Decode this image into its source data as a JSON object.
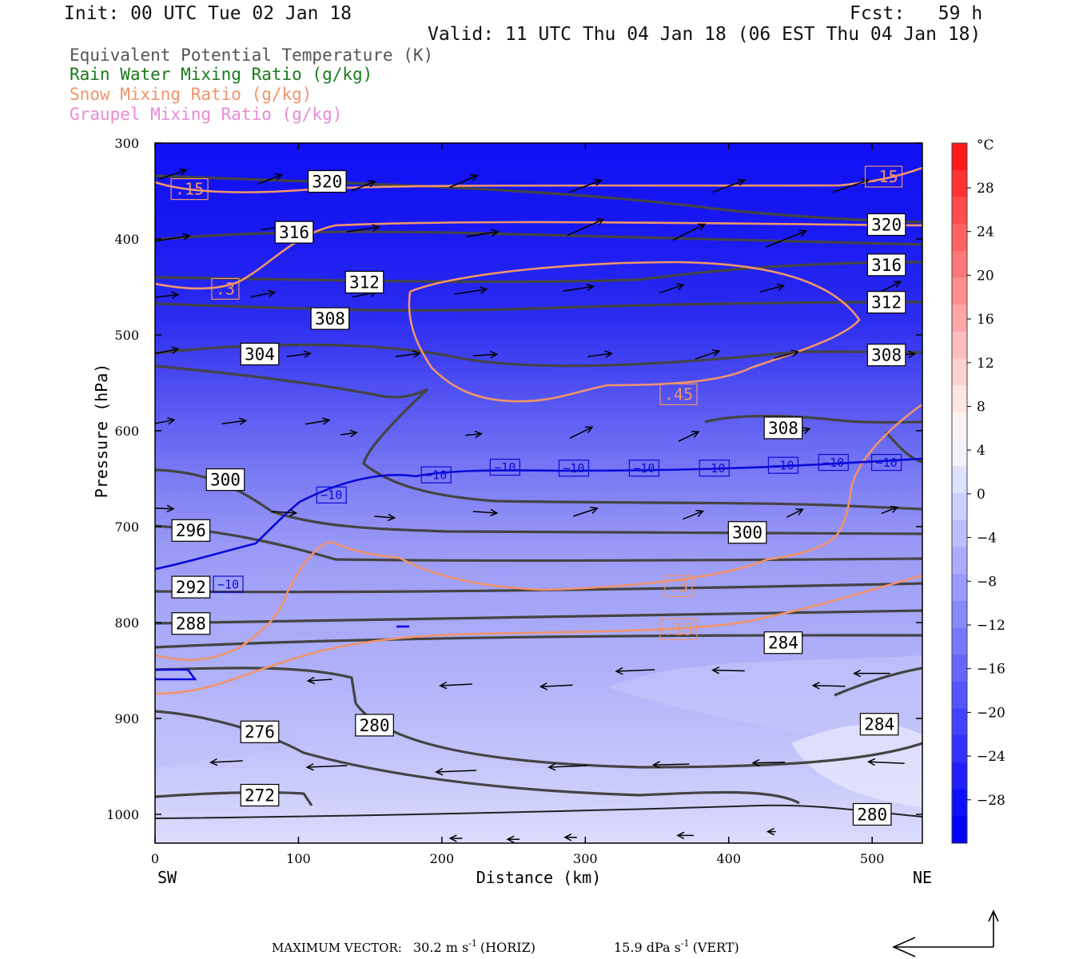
{
  "header": {
    "init": "Init: 00 UTC Tue 02 Jan 18",
    "fcst": "Fcst:   59 h",
    "valid": "Valid: 11 UTC Thu 04 Jan 18 (06 EST Thu 04 Jan 18)"
  },
  "legend": [
    {
      "label": "Equivalent Potential Temperature (K)",
      "color": "#555555"
    },
    {
      "label": "Rain Water Mixing Ratio (g/kg)",
      "color": "#1a7a1a"
    },
    {
      "label": "Snow Mixing Ratio (g/kg)",
      "color": "#f0946a"
    },
    {
      "label": "Graupel Mixing Ratio (g/kg)",
      "color": "#e98ad8"
    }
  ],
  "footer": {
    "max_vector_label": "MAXIMUM VECTOR:",
    "horiz_value": "30.2 m s",
    "horiz_suffix": "(HORIZ)",
    "vert_value": "15.9 dPa s",
    "vert_suffix": "(VERT)",
    "exponent": "-1"
  },
  "chart_data": {
    "type": "heatmap",
    "description_fields": "cross-section SW to NE",
    "xlabel": "Distance (km)",
    "ylabel": "Pressure (hPa)",
    "xlim": [
      0,
      535
    ],
    "ylim": [
      1030,
      300
    ],
    "x_ticks": [
      0,
      100,
      200,
      300,
      400,
      500
    ],
    "y_ticks": [
      300,
      400,
      500,
      600,
      700,
      800,
      900,
      1000
    ],
    "x_end_labels": {
      "left": "SW",
      "right": "NE"
    },
    "colorbar": {
      "unit": "°C",
      "labels": [
        "28",
        "24",
        "20",
        "16",
        "12",
        "8",
        "4",
        "0",
        "−4",
        "−8",
        "−12",
        "−16",
        "−20",
        "−24",
        "−28"
      ],
      "colors": [
        "#ff1a1a",
        "#ff3333",
        "#ff4d4d",
        "#ff6262",
        "#ff7777",
        "#ff8f8f",
        "#ffa6a6",
        "#ffbcbc",
        "#ffd2d2",
        "#ffe6e6",
        "#fff4f4",
        "#f2f2ff",
        "#e0e0ff",
        "#cfcfff",
        "#bdbdff",
        "#acacff",
        "#9a9aff",
        "#8989ff",
        "#7878ff",
        "#6666ff",
        "#5555ff",
        "#4343ff",
        "#3232ff",
        "#2020ff",
        "#0f0fff",
        "#0000ff"
      ]
    },
    "theta_e_labels": [
      {
        "text": "320",
        "x": 120,
        "p": 340
      },
      {
        "text": "320",
        "x": 510,
        "p": 385
      },
      {
        "text": "316",
        "x": 97,
        "p": 393
      },
      {
        "text": "316",
        "x": 510,
        "p": 427
      },
      {
        "text": "312",
        "x": 146,
        "p": 445
      },
      {
        "text": "312",
        "x": 510,
        "p": 466
      },
      {
        "text": "308",
        "x": 122,
        "p": 483
      },
      {
        "text": "308",
        "x": 510,
        "p": 521
      },
      {
        "text": "308",
        "x": 438,
        "p": 597
      },
      {
        "text": "304",
        "x": 73,
        "p": 520
      },
      {
        "text": "300",
        "x": 49,
        "p": 651
      },
      {
        "text": "300",
        "x": 413,
        "p": 706
      },
      {
        "text": "296",
        "x": 25,
        "p": 704
      },
      {
        "text": "292",
        "x": 25,
        "p": 763
      },
      {
        "text": "288",
        "x": 25,
        "p": 801
      },
      {
        "text": "284",
        "x": 438,
        "p": 821
      },
      {
        "text": "284",
        "x": 505,
        "p": 906
      },
      {
        "text": "280",
        "x": 153,
        "p": 907
      },
      {
        "text": "280",
        "x": 500,
        "p": 1000
      },
      {
        "text": "276",
        "x": 73,
        "p": 914
      },
      {
        "text": "272",
        "x": 73,
        "p": 980
      }
    ],
    "snow_labels": [
      {
        "text": ".15",
        "x": 24,
        "p": 348
      },
      {
        "text": ".15",
        "x": 508,
        "p": 335
      },
      {
        "text": ".3",
        "x": 49,
        "p": 452
      },
      {
        "text": ".3",
        "x": 365,
        "p": 762
      },
      {
        "text": ".45",
        "x": 365,
        "p": 562
      },
      {
        "text": ".15",
        "x": 365,
        "p": 807
      }
    ],
    "isotherm_labels": [
      {
        "text": "−10",
        "x": 123,
        "p": 667
      },
      {
        "text": "−10",
        "x": 196,
        "p": 646
      },
      {
        "text": "−10",
        "x": 244,
        "p": 638
      },
      {
        "text": "−10",
        "x": 292,
        "p": 639
      },
      {
        "text": "−10",
        "x": 341,
        "p": 639
      },
      {
        "text": "−10",
        "x": 390,
        "p": 639
      },
      {
        "text": "−10",
        "x": 438,
        "p": 636
      },
      {
        "text": "−10",
        "x": 473,
        "p": 633
      },
      {
        "text": "−10",
        "x": 510,
        "p": 633
      },
      {
        "text": "−10",
        "x": 51,
        "p": 760
      }
    ]
  }
}
